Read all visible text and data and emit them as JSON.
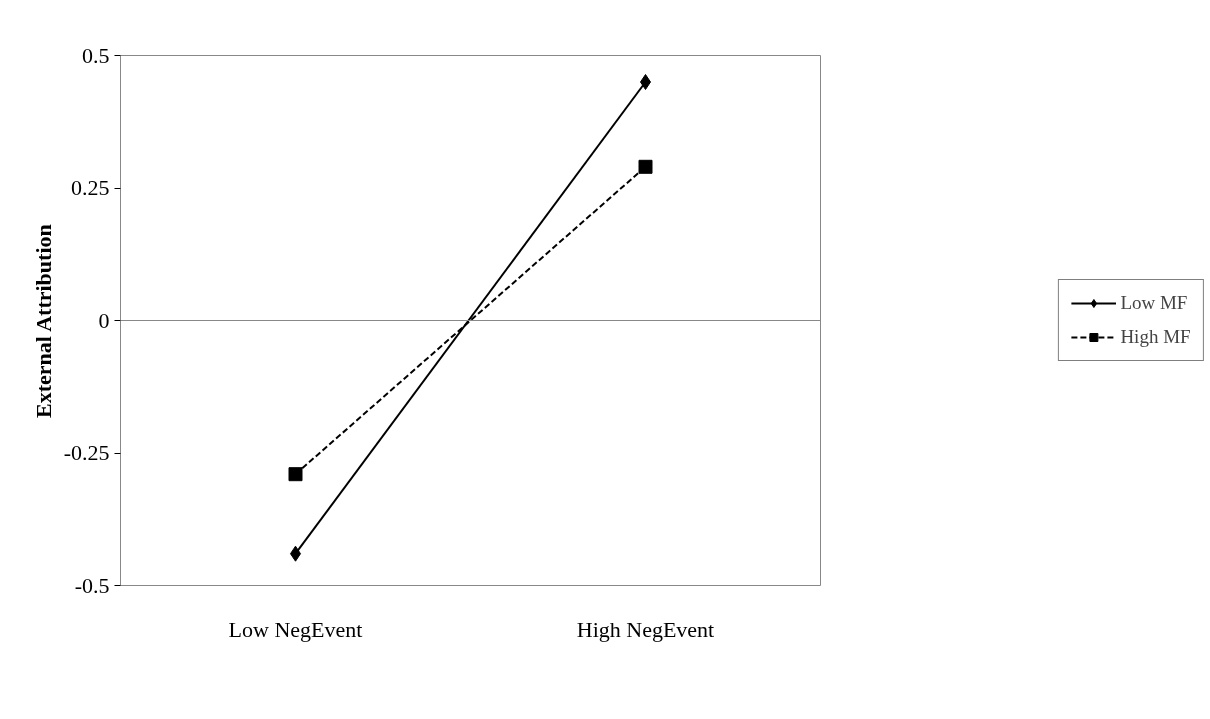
{
  "chart_data": {
    "type": "line",
    "ylabel": "External Attribution",
    "categories": [
      "Low NegEvent",
      "High NegEvent"
    ],
    "series": [
      {
        "name": "Low MF",
        "color": "#000000",
        "values": [
          -0.44,
          0.45
        ],
        "marker": "diamond",
        "line_style": "solid"
      },
      {
        "name": "High MF",
        "color": "#000000",
        "values": [
          -0.29,
          0.29
        ],
        "marker": "square",
        "line_style": "dashed"
      }
    ],
    "ref_lines": [
      {
        "axis": "y",
        "value": 0,
        "color": "#888888"
      }
    ],
    "ylim": [
      -0.5,
      0.5
    ],
    "yticks": [
      -0.5,
      -0.25,
      0,
      0.25,
      0.5
    ],
    "grid": false,
    "legend": "right"
  }
}
